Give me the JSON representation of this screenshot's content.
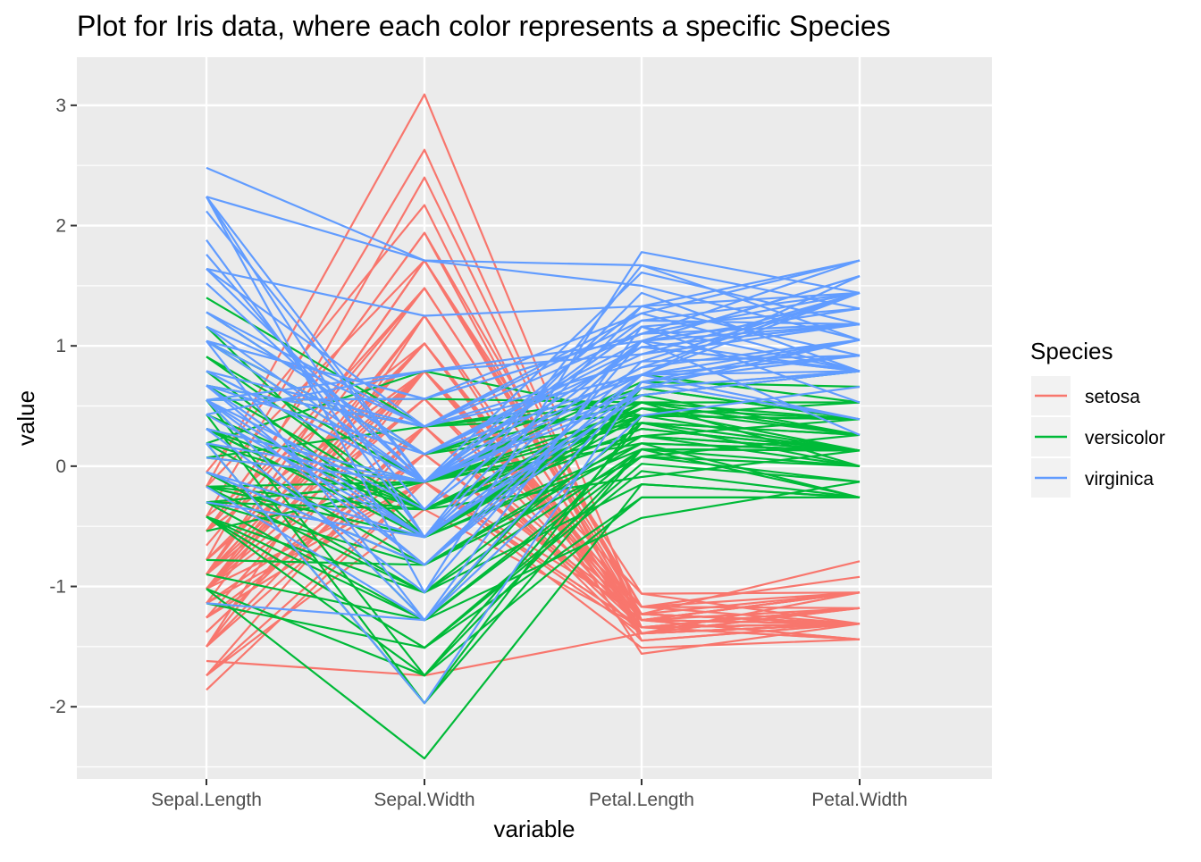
{
  "chart_data": {
    "type": "line",
    "title": "Plot for Iris data, where each color represents a specific Species",
    "xlabel": "variable",
    "ylabel": "value",
    "categories": [
      "Sepal.Length",
      "Sepal.Width",
      "Petal.Length",
      "Petal.Width"
    ],
    "ylim": [
      -2.6,
      3.4
    ],
    "yticks": [
      "-2",
      "-1",
      "0",
      "1",
      "2",
      "3"
    ],
    "grid": true,
    "legend": {
      "title": "Species",
      "position": "right"
    },
    "series": [
      {
        "name": "setosa",
        "color": "#F8766D",
        "lines": [
          [
            -0.9,
            1.02,
            -1.34,
            -1.31
          ],
          [
            -1.14,
            -0.13,
            -1.34,
            -1.31
          ],
          [
            -1.38,
            0.33,
            -1.39,
            -1.31
          ],
          [
            -1.5,
            0.1,
            -1.28,
            -1.31
          ],
          [
            -1.02,
            1.25,
            -1.34,
            -1.31
          ],
          [
            -0.54,
            1.94,
            -1.17,
            -1.05
          ],
          [
            -1.5,
            0.79,
            -1.34,
            -1.18
          ],
          [
            -1.02,
            0.79,
            -1.28,
            -1.31
          ],
          [
            -1.74,
            -0.36,
            -1.34,
            -1.31
          ],
          [
            -1.14,
            0.1,
            -1.28,
            -1.44
          ],
          [
            -0.54,
            1.48,
            -1.28,
            -1.31
          ],
          [
            -1.26,
            0.79,
            -1.23,
            -1.31
          ],
          [
            -1.26,
            -0.13,
            -1.34,
            -1.44
          ],
          [
            -1.86,
            -0.13,
            -1.51,
            -1.44
          ],
          [
            -0.05,
            2.17,
            -1.45,
            -1.31
          ],
          [
            -0.17,
            3.09,
            -1.28,
            -1.05
          ],
          [
            -0.54,
            1.94,
            -1.39,
            -1.05
          ],
          [
            -0.9,
            1.02,
            -1.34,
            -1.18
          ],
          [
            -0.17,
            1.71,
            -1.17,
            -1.18
          ],
          [
            -0.9,
            1.71,
            -1.28,
            -1.18
          ],
          [
            -0.54,
            0.79,
            -1.17,
            -1.31
          ],
          [
            -0.9,
            1.48,
            -1.28,
            -1.05
          ],
          [
            -1.5,
            1.25,
            -1.56,
            -1.31
          ],
          [
            -0.9,
            0.56,
            -1.17,
            -0.92
          ],
          [
            -1.26,
            0.79,
            -1.06,
            -1.31
          ],
          [
            -1.02,
            -0.13,
            -1.23,
            -1.31
          ],
          [
            -1.02,
            0.79,
            -1.23,
            -1.05
          ],
          [
            -0.78,
            1.02,
            -1.28,
            -1.31
          ],
          [
            -0.78,
            0.79,
            -1.34,
            -1.31
          ],
          [
            -1.38,
            0.33,
            -1.23,
            -1.31
          ],
          [
            -1.26,
            0.1,
            -1.23,
            -1.31
          ],
          [
            -0.54,
            0.79,
            -1.28,
            -1.05
          ],
          [
            -0.78,
            2.4,
            -1.28,
            -1.44
          ],
          [
            -0.42,
            2.63,
            -1.34,
            -1.31
          ],
          [
            -1.14,
            0.1,
            -1.28,
            -1.31
          ],
          [
            -1.02,
            0.33,
            -1.45,
            -1.31
          ],
          [
            -0.42,
            1.02,
            -1.39,
            -1.31
          ],
          [
            -1.14,
            1.25,
            -1.34,
            -1.44
          ],
          [
            -1.74,
            -0.13,
            -1.39,
            -1.31
          ],
          [
            -0.9,
            0.79,
            -1.28,
            -1.31
          ],
          [
            -1.02,
            1.02,
            -1.39,
            -1.18
          ],
          [
            -1.62,
            -1.74,
            -1.39,
            -1.18
          ],
          [
            -1.74,
            0.33,
            -1.39,
            -1.31
          ],
          [
            -1.02,
            1.02,
            -1.23,
            -0.79
          ],
          [
            -0.9,
            1.71,
            -1.06,
            -1.05
          ],
          [
            -1.26,
            -0.13,
            -1.34,
            -1.18
          ],
          [
            -0.9,
            1.71,
            -1.23,
            -1.31
          ],
          [
            -1.5,
            0.33,
            -1.34,
            -1.31
          ],
          [
            -0.66,
            1.48,
            -1.28,
            -1.31
          ],
          [
            -1.02,
            0.56,
            -1.34,
            -1.31
          ]
        ]
      },
      {
        "name": "versicolor",
        "color": "#00BA38",
        "lines": [
          [
            1.4,
            0.33,
            0.53,
            0.26
          ],
          [
            0.67,
            0.33,
            0.42,
            0.39
          ],
          [
            1.28,
            0.1,
            0.65,
            0.39
          ],
          [
            -0.42,
            -1.74,
            0.14,
            0.13
          ],
          [
            0.79,
            -0.59,
            0.48,
            0.39
          ],
          [
            -0.17,
            -0.59,
            0.42,
            0.13
          ],
          [
            0.55,
            0.56,
            0.53,
            0.53
          ],
          [
            -1.14,
            -1.51,
            -0.26,
            -0.26
          ],
          [
            0.91,
            -0.36,
            0.48,
            0.13
          ],
          [
            -0.78,
            -0.82,
            0.08,
            0.26
          ],
          [
            -1.02,
            -2.43,
            -0.15,
            -0.26
          ],
          [
            0.07,
            -0.13,
            0.25,
            0.39
          ],
          [
            0.19,
            -1.97,
            0.14,
            -0.26
          ],
          [
            0.31,
            -0.36,
            0.53,
            0.26
          ],
          [
            -0.3,
            -0.36,
            -0.09,
            0.13
          ],
          [
            1.04,
            0.1,
            0.36,
            0.26
          ],
          [
            -0.3,
            -0.13,
            0.42,
            0.39
          ],
          [
            -0.05,
            -0.82,
            0.19,
            -0.26
          ],
          [
            0.43,
            -1.97,
            0.42,
            0.39
          ],
          [
            -0.3,
            -1.28,
            0.08,
            -0.13
          ],
          [
            0.07,
            0.33,
            0.59,
            0.79
          ],
          [
            0.31,
            -0.59,
            0.14,
            0.13
          ],
          [
            0.55,
            -1.28,
            0.65,
            0.39
          ],
          [
            0.31,
            -0.59,
            0.53,
            0.0
          ],
          [
            0.67,
            -0.36,
            0.31,
            0.13
          ],
          [
            0.91,
            -0.13,
            0.36,
            0.26
          ],
          [
            1.16,
            -0.59,
            0.59,
            0.26
          ],
          [
            1.04,
            -0.13,
            0.7,
            0.66
          ],
          [
            0.19,
            -0.36,
            0.42,
            0.39
          ],
          [
            -0.17,
            -1.05,
            -0.15,
            -0.26
          ],
          [
            -0.42,
            -1.51,
            0.02,
            -0.13
          ],
          [
            -0.42,
            -1.51,
            -0.04,
            -0.26
          ],
          [
            -0.05,
            -0.82,
            0.08,
            0.0
          ],
          [
            0.19,
            -0.82,
            0.76,
            0.53
          ],
          [
            -0.54,
            -0.13,
            0.42,
            0.39
          ],
          [
            0.19,
            0.79,
            0.42,
            0.53
          ],
          [
            1.04,
            0.1,
            0.53,
            0.39
          ],
          [
            0.55,
            -1.74,
            0.36,
            0.13
          ],
          [
            -0.3,
            -0.13,
            0.19,
            0.13
          ],
          [
            -0.42,
            -1.28,
            0.14,
            0.13
          ],
          [
            -0.42,
            -1.05,
            0.36,
            0.0
          ],
          [
            0.31,
            -0.13,
            0.48,
            0.26
          ],
          [
            -0.05,
            -1.05,
            0.14,
            0.0
          ],
          [
            -1.02,
            -1.74,
            -0.26,
            -0.26
          ],
          [
            -0.3,
            -0.82,
            0.25,
            0.13
          ],
          [
            -0.17,
            -0.13,
            0.25,
            0.0
          ],
          [
            -0.17,
            -0.36,
            0.25,
            0.13
          ],
          [
            0.43,
            -0.36,
            0.31,
            0.13
          ],
          [
            -0.9,
            -1.28,
            -0.43,
            -0.13
          ],
          [
            -0.17,
            -0.59,
            0.19,
            0.13
          ]
        ]
      },
      {
        "name": "virginica",
        "color": "#619CFF",
        "lines": [
          [
            0.55,
            0.56,
            1.27,
            1.71
          ],
          [
            -0.05,
            -0.82,
            0.76,
            0.92
          ],
          [
            1.52,
            -0.13,
            1.21,
            1.18
          ],
          [
            0.55,
            -0.36,
            1.04,
            0.79
          ],
          [
            0.79,
            -0.13,
            1.16,
            1.31
          ],
          [
            2.12,
            -0.13,
            1.61,
            1.18
          ],
          [
            -1.14,
            -1.28,
            0.42,
            0.66
          ],
          [
            1.76,
            -0.36,
            1.44,
            0.79
          ],
          [
            1.04,
            -1.28,
            1.16,
            0.79
          ],
          [
            1.64,
            1.25,
            1.33,
            1.71
          ],
          [
            0.79,
            0.33,
            0.76,
            1.05
          ],
          [
            0.67,
            -0.82,
            0.87,
            0.92
          ],
          [
            1.16,
            -0.13,
            0.99,
            1.18
          ],
          [
            -0.17,
            -1.28,
            0.7,
            1.05
          ],
          [
            -0.05,
            -0.59,
            0.76,
            1.58
          ],
          [
            0.67,
            0.33,
            0.87,
            1.44
          ],
          [
            0.79,
            -0.13,
            0.99,
            0.79
          ],
          [
            2.24,
            1.71,
            1.67,
            1.31
          ],
          [
            2.24,
            -1.05,
            1.78,
            1.44
          ],
          [
            0.19,
            -1.97,
            0.7,
            0.39
          ],
          [
            1.28,
            0.33,
            1.1,
            1.44
          ],
          [
            -0.3,
            -0.59,
            0.65,
            1.05
          ],
          [
            2.24,
            -0.59,
            1.67,
            1.05
          ],
          [
            0.55,
            -0.82,
            0.65,
            0.79
          ],
          [
            1.04,
            0.56,
            1.1,
            1.18
          ],
          [
            1.64,
            0.33,
            1.27,
            0.79
          ],
          [
            0.43,
            -0.59,
            0.59,
            0.79
          ],
          [
            0.31,
            -0.13,
            0.65,
            0.79
          ],
          [
            0.67,
            -0.59,
            1.04,
            1.18
          ],
          [
            1.64,
            -0.13,
            1.16,
            0.53
          ],
          [
            1.88,
            -0.59,
            1.33,
            0.92
          ],
          [
            2.48,
            1.71,
            1.5,
            1.05
          ],
          [
            0.67,
            -0.59,
            1.04,
            1.31
          ],
          [
            0.55,
            -0.59,
            0.76,
            0.39
          ],
          [
            0.31,
            -1.05,
            1.04,
            0.26
          ],
          [
            2.24,
            -0.13,
            1.33,
            1.44
          ],
          [
            0.55,
            0.79,
            1.04,
            1.58
          ],
          [
            0.67,
            0.1,
            0.99,
            0.79
          ],
          [
            0.19,
            -0.13,
            0.59,
            0.79
          ],
          [
            1.28,
            0.1,
            0.93,
            1.18
          ],
          [
            1.04,
            0.1,
            1.04,
            1.58
          ],
          [
            1.28,
            0.1,
            0.76,
            1.44
          ],
          [
            -0.05,
            -0.82,
            0.76,
            0.92
          ],
          [
            1.16,
            0.33,
            1.21,
            1.44
          ],
          [
            1.04,
            0.56,
            1.1,
            1.71
          ],
          [
            1.04,
            -0.13,
            0.82,
            1.44
          ],
          [
            0.55,
            -1.28,
            0.7,
            0.92
          ],
          [
            0.79,
            -0.13,
            0.82,
            1.05
          ],
          [
            0.43,
            0.79,
            0.93,
            1.44
          ],
          [
            0.07,
            -0.13,
            0.76,
            0.79
          ]
        ]
      }
    ]
  }
}
